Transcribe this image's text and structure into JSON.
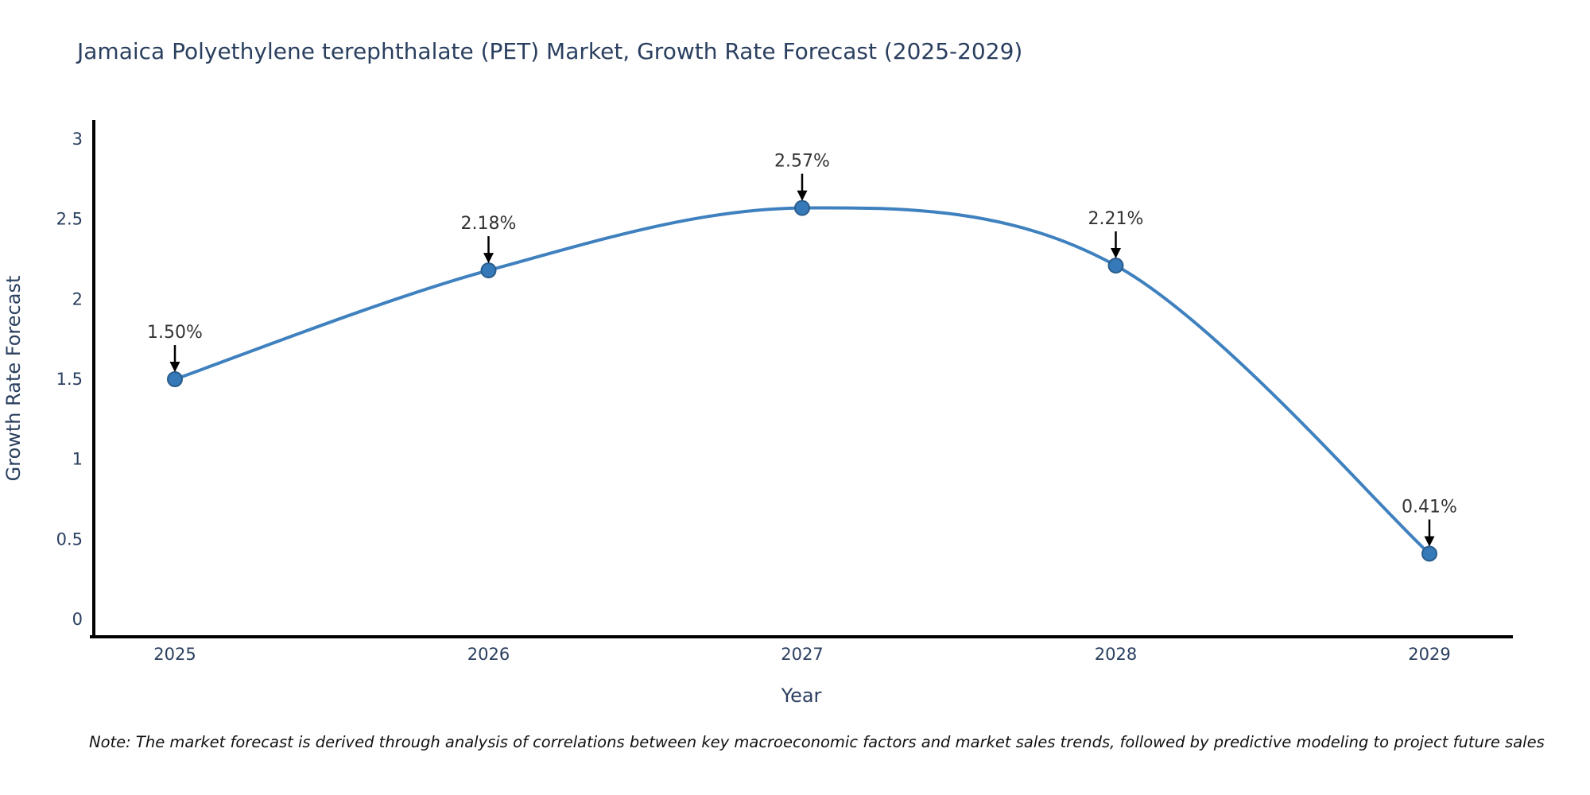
{
  "title": "Jamaica Polyethylene terephthalate (PET) Market, Growth Rate Forecast (2025-2029)",
  "note": "Note: The market forecast is derived through analysis of correlations between key macroeconomic factors and market sales trends, followed by predictive modeling to project future sales",
  "chart_data": {
    "type": "line",
    "title": "Jamaica Polyethylene terephthalate (PET) Market, Growth Rate Forecast (2025-2029)",
    "xlabel": "Year",
    "ylabel": "Growth Rate Forecast",
    "categories": [
      "2025",
      "2026",
      "2027",
      "2028",
      "2029"
    ],
    "values": [
      1.5,
      2.18,
      2.57,
      2.21,
      0.41
    ],
    "point_labels": [
      "1.50%",
      "2.18%",
      "2.57%",
      "2.21%",
      "0.41%"
    ],
    "series": [
      {
        "name": "Growth Rate Forecast",
        "values": [
          1.5,
          2.18,
          2.57,
          2.21,
          0.41
        ]
      }
    ],
    "ylim": [
      0,
      3
    ],
    "yticks": [
      0,
      0.5,
      1,
      1.5,
      2,
      2.5,
      3
    ],
    "ytick_labels": [
      "0",
      "0.5",
      "1",
      "1.5",
      "2",
      "2.5",
      "3"
    ],
    "grid": false,
    "legend": false,
    "line_shape": "spline",
    "colors": {
      "line": "#3f81bf",
      "marker_fill": "#3579b8",
      "marker_edge": "#2b5d8c",
      "axis_line": "#000000",
      "title_text": "#2a3f5f",
      "tick_text": "#2a3f5f",
      "axis_title_text": "#2a3f5f",
      "annotation_text": "#333333",
      "annotation_arrow": "#000000",
      "background": "#ffffff"
    }
  }
}
